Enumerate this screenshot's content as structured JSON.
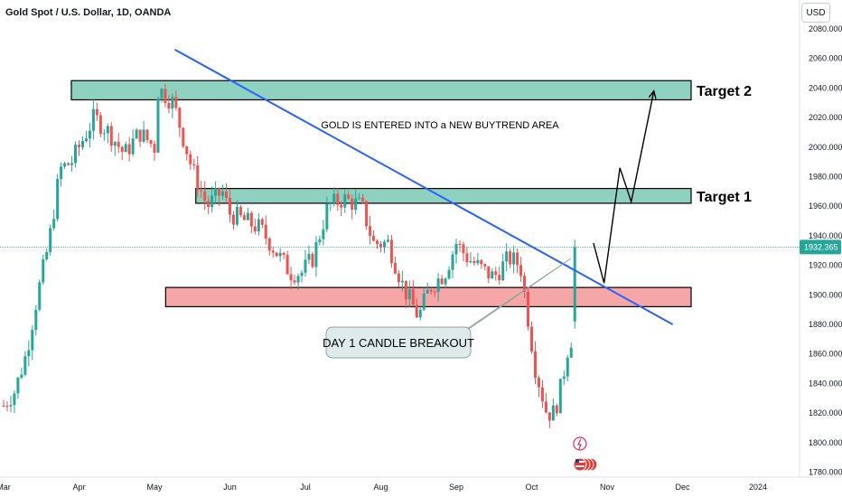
{
  "header": {
    "symbol_line": "Gold Spot / U.S. Dollar, 1D, OANDA"
  },
  "currency_button": {
    "label": "USD"
  },
  "last_price": {
    "label": "1932.365",
    "value": 1932.365,
    "color": "#26a69a"
  },
  "colors": {
    "up": "#26a69a",
    "down": "#ef5350",
    "trendline": "#2962ff",
    "zone_target": "#8fd1c0",
    "zone_support": "#f7a6a8"
  },
  "chart_data": {
    "type": "candlestick",
    "title": "Gold Spot / U.S. Dollar, 1D, OANDA",
    "y_axis": {
      "ticks": [
        "2080.000",
        "2060.000",
        "2040.000",
        "2020.000",
        "2000.000",
        "1980.000",
        "1960.000",
        "1940.000",
        "1920.000",
        "1900.000",
        "1880.000",
        "1860.000",
        "1840.000",
        "1820.000",
        "1800.000",
        "1780.000"
      ],
      "ylim": [
        1776,
        2094
      ]
    },
    "x_axis": {
      "ticks": [
        "Mar",
        "Apr",
        "May",
        "Jun",
        "Jul",
        "Aug",
        "Sep",
        "Oct",
        "Nov",
        "Dec",
        "2024"
      ]
    },
    "price_path": [
      {
        "m": 0.0,
        "c": 1825
      },
      {
        "m": 0.15,
        "c": 1835
      },
      {
        "m": 0.3,
        "c": 1860
      },
      {
        "m": 0.45,
        "c": 1900
      },
      {
        "m": 0.6,
        "c": 1935
      },
      {
        "m": 0.75,
        "c": 1985
      },
      {
        "m": 0.9,
        "c": 1990
      },
      {
        "m": 1.0,
        "c": 2000
      },
      {
        "m": 1.2,
        "c": 2020
      },
      {
        "m": 1.4,
        "c": 2010
      },
      {
        "m": 1.6,
        "c": 1995
      },
      {
        "m": 1.8,
        "c": 2010
      },
      {
        "m": 2.0,
        "c": 2000
      },
      {
        "m": 2.05,
        "c": 2040
      },
      {
        "m": 2.25,
        "c": 2030
      },
      {
        "m": 2.5,
        "c": 1985
      },
      {
        "m": 2.7,
        "c": 1960
      },
      {
        "m": 2.9,
        "c": 1970
      },
      {
        "m": 3.0,
        "c": 1955
      },
      {
        "m": 3.2,
        "c": 1950
      },
      {
        "m": 3.4,
        "c": 1945
      },
      {
        "m": 3.6,
        "c": 1930
      },
      {
        "m": 3.8,
        "c": 1915
      },
      {
        "m": 3.95,
        "c": 1915
      },
      {
        "m": 4.1,
        "c": 1925
      },
      {
        "m": 4.3,
        "c": 1960
      },
      {
        "m": 4.5,
        "c": 1965
      },
      {
        "m": 4.75,
        "c": 1960
      },
      {
        "m": 4.9,
        "c": 1935
      },
      {
        "m": 5.1,
        "c": 1935
      },
      {
        "m": 5.3,
        "c": 1905
      },
      {
        "m": 5.5,
        "c": 1885
      },
      {
        "m": 5.65,
        "c": 1905
      },
      {
        "m": 5.85,
        "c": 1915
      },
      {
        "m": 6.0,
        "c": 1935
      },
      {
        "m": 6.15,
        "c": 1925
      },
      {
        "m": 6.4,
        "c": 1915
      },
      {
        "m": 6.5,
        "c": 1912
      },
      {
        "m": 6.7,
        "c": 1925
      },
      {
        "m": 6.85,
        "c": 1920
      },
      {
        "m": 6.95,
        "c": 1885
      },
      {
        "m": 7.05,
        "c": 1850
      },
      {
        "m": 7.2,
        "c": 1820
      },
      {
        "m": 7.3,
        "c": 1820
      },
      {
        "m": 7.4,
        "c": 1840
      },
      {
        "m": 7.5,
        "c": 1870
      },
      {
        "m": 7.55,
        "c": 1870
      },
      {
        "m": 7.6,
        "c": 1932
      }
    ]
  },
  "zones": [
    {
      "label": "Target 2",
      "top": 2045,
      "bottom": 2032,
      "x_start_m": 0.85,
      "x_end_m": 9.0,
      "kind": "target"
    },
    {
      "label": "Target 1",
      "top": 1972,
      "bottom": 1962,
      "x_start_m": 2.5,
      "x_end_m": 9.0,
      "kind": "target"
    },
    {
      "label": "",
      "top": 1905,
      "bottom": 1892,
      "x_start_m": 2.1,
      "x_end_m": 9.0,
      "kind": "support"
    }
  ],
  "trendline": {
    "from": {
      "m": 2.15,
      "price": 2066
    },
    "to": {
      "m": 8.75,
      "price": 1880
    }
  },
  "projection": [
    {
      "m": 7.7,
      "price": 1935
    },
    {
      "m": 7.84,
      "price": 1908
    },
    {
      "m": 8.05,
      "price": 1986
    },
    {
      "m": 8.2,
      "price": 1963
    },
    {
      "m": 8.5,
      "price": 2038
    }
  ],
  "annotations": {
    "main_note": "GOLD IS ENTERED INTO a NEW BUYTREND AREA",
    "callout": "DAY 1 CANDLE BREAKOUT",
    "target1": "Target 1",
    "target2": "Target 2"
  }
}
